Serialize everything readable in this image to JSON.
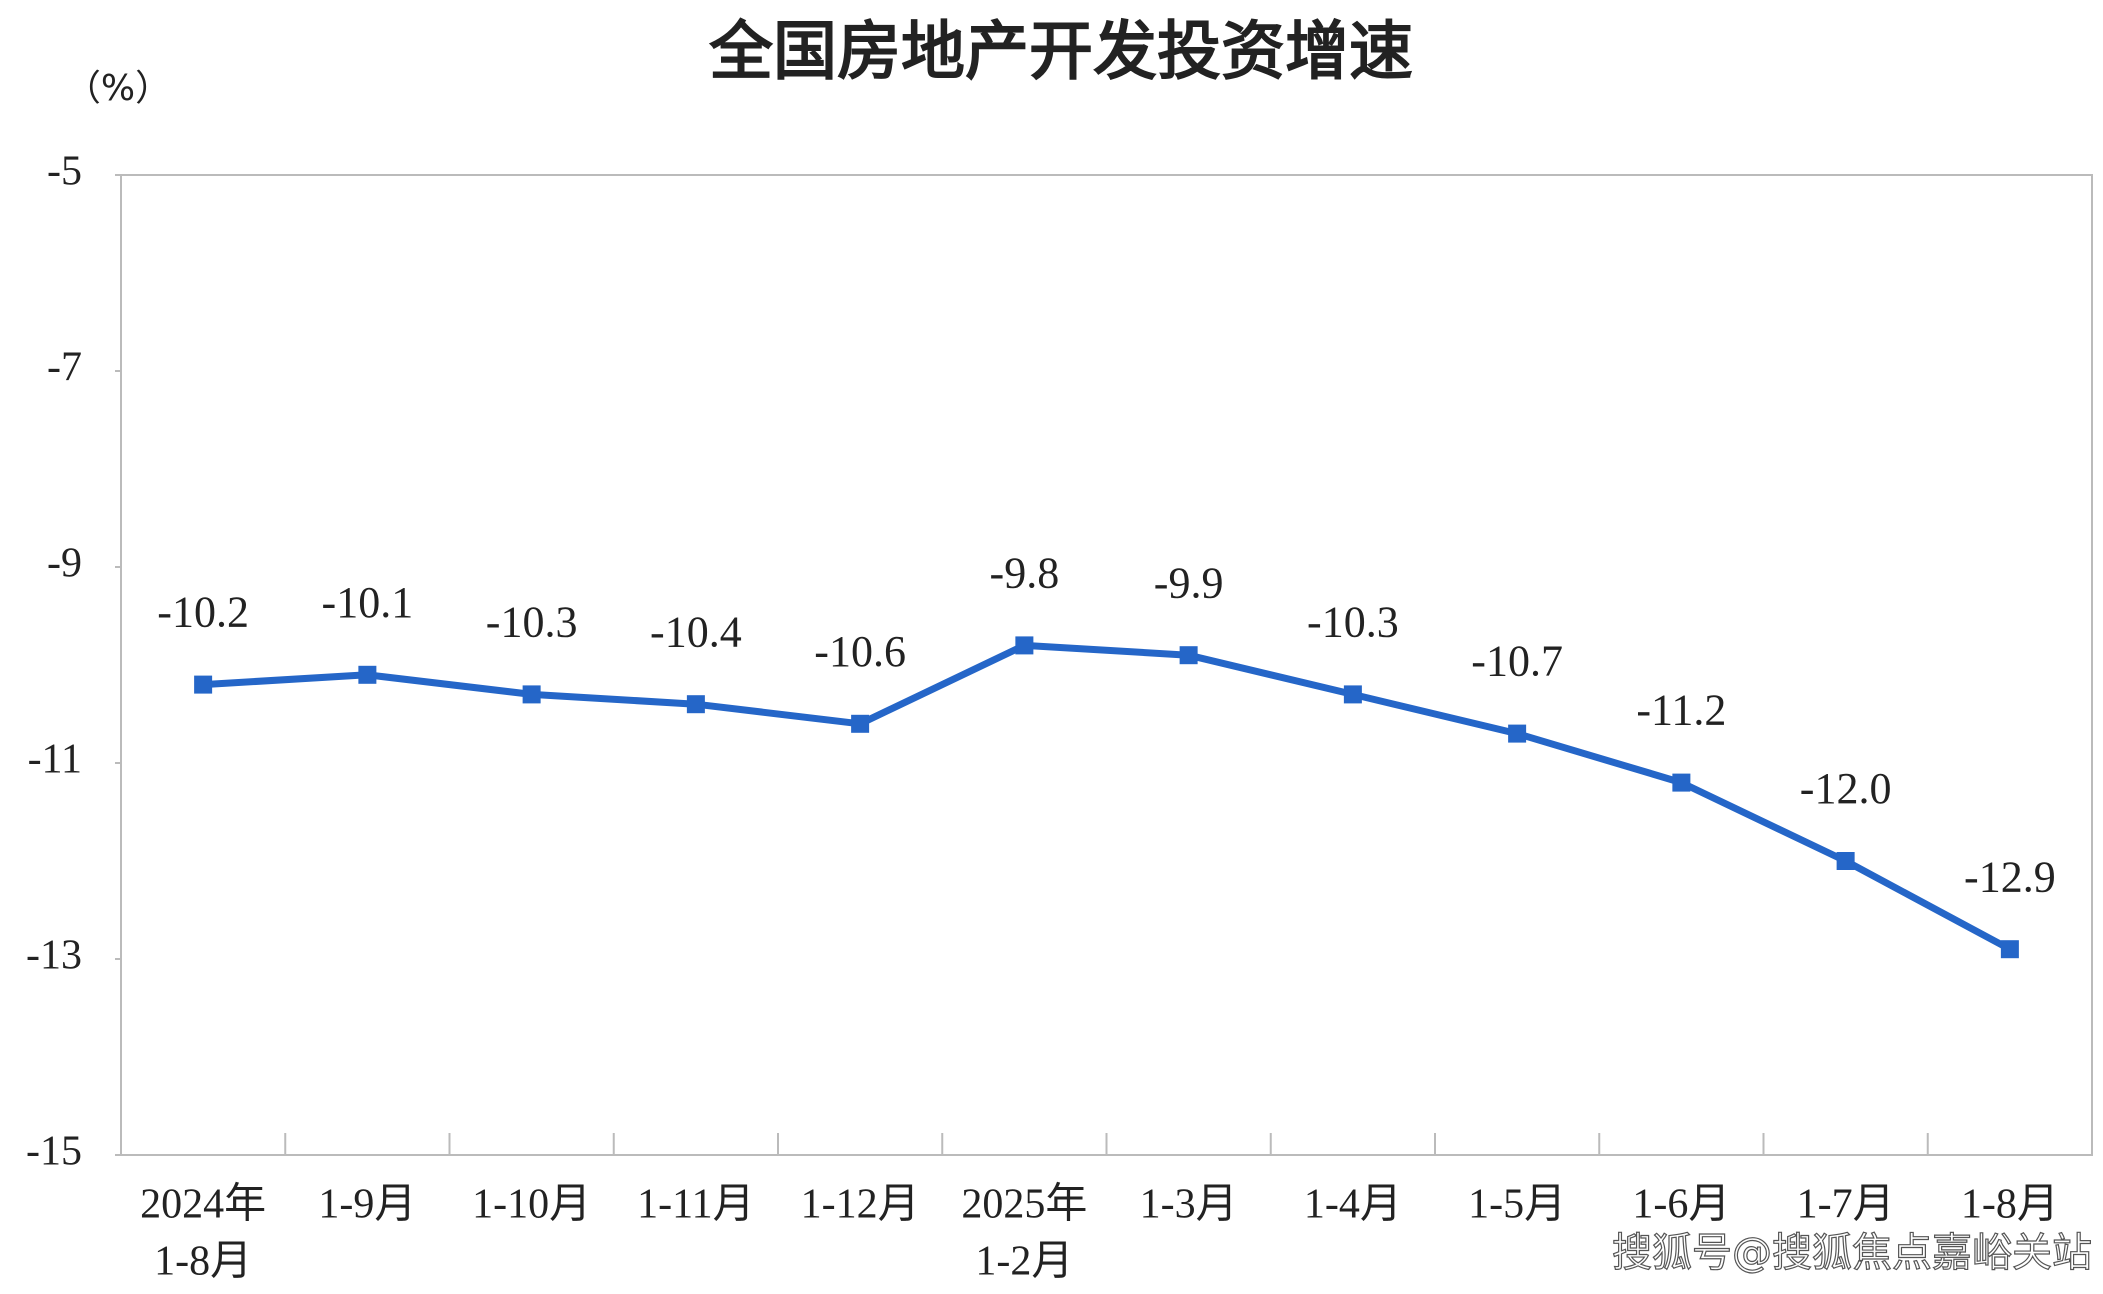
{
  "chart_data": {
    "type": "line",
    "title": "全国房地产开发投资增速",
    "y_unit": "（%）",
    "categories": [
      [
        "2024年",
        "1-8月"
      ],
      [
        "1-9月"
      ],
      [
        "1-10月"
      ],
      [
        "1-11月"
      ],
      [
        "1-12月"
      ],
      [
        "2025年",
        "1-2月"
      ],
      [
        "1-3月"
      ],
      [
        "1-4月"
      ],
      [
        "1-5月"
      ],
      [
        "1-6月"
      ],
      [
        "1-7月"
      ],
      [
        "1-8月"
      ]
    ],
    "values": [
      -10.2,
      -10.1,
      -10.3,
      -10.4,
      -10.6,
      -9.8,
      -9.9,
      -10.3,
      -10.7,
      -11.2,
      -12.0,
      -12.9
    ],
    "value_labels": [
      "-10.2",
      "-10.1",
      "-10.3",
      "-10.4",
      "-10.6",
      "-9.8",
      "-9.9",
      "-10.3",
      "-10.7",
      "-11.2",
      "-12.0",
      "-12.9"
    ],
    "color": "#2566c8",
    "ylim": [
      -15,
      -5
    ],
    "yticks": [
      -5,
      -7,
      -9,
      -11,
      -13,
      -15
    ],
    "grid": false,
    "watermark": "搜狐号@搜狐焦点嘉峪关站"
  }
}
